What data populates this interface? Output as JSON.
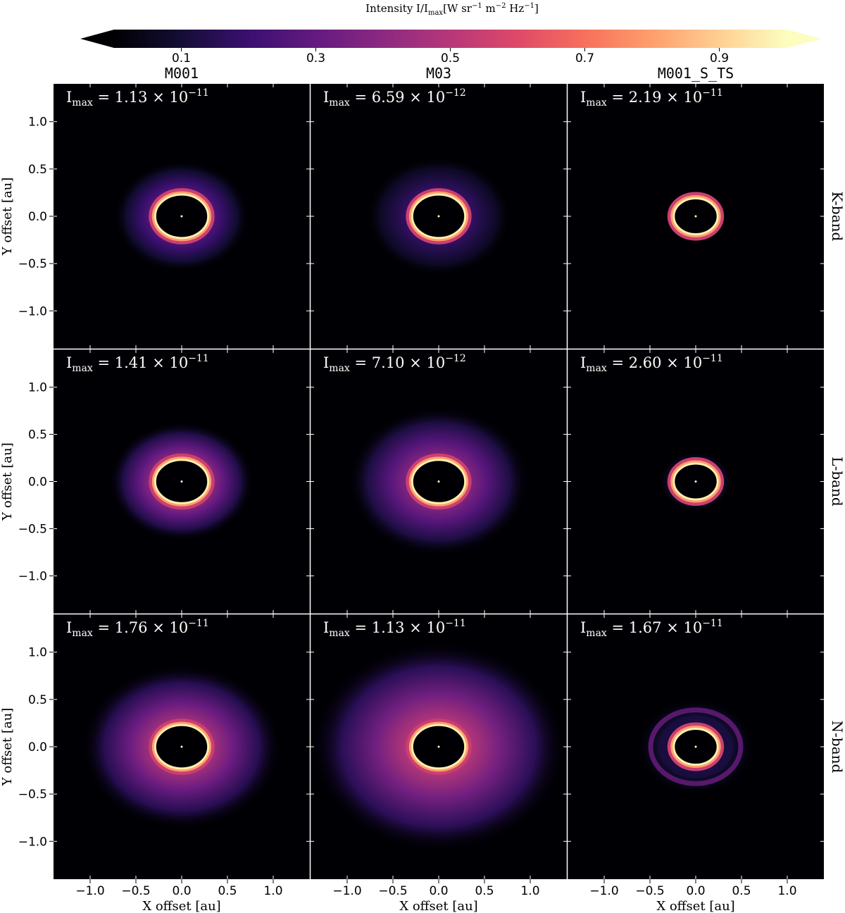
{
  "chart_data": {
    "type": "heatmap",
    "layout": "3x3 grid of intensity maps",
    "colormap": "magma",
    "colorbar": {
      "label_main": "Intensity I/I",
      "label_sub": "max",
      "label_units_open": "[W sr",
      "label_exp1": "−1",
      "label_units_mid1": " m",
      "label_exp2": "−2",
      "label_units_mid2": " Hz",
      "label_exp3": "−1",
      "label_units_close": "]",
      "range": [
        0.0,
        1.0
      ],
      "extend": "both",
      "ticks": [
        0.1,
        0.3,
        0.5,
        0.7,
        0.9
      ],
      "tick_labels": [
        "0.1",
        "0.3",
        "0.5",
        "0.7",
        "0.9"
      ]
    },
    "columns": [
      "M001",
      "M03",
      "M001_S_TS"
    ],
    "rows": [
      "K-band",
      "L-band",
      "N-band"
    ],
    "xlabel": "X offset [au]",
    "ylabel": "Y offset [au]",
    "xlim": [
      -1.4,
      1.4
    ],
    "ylim": [
      -1.4,
      1.4
    ],
    "xticks": [
      -1.0,
      -0.5,
      0.0,
      0.5,
      1.0
    ],
    "xtick_labels": [
      "−1.0",
      "−0.5",
      "0.0",
      "0.5",
      "1.0"
    ],
    "yticks": [
      1.0,
      0.5,
      0.0,
      -0.5,
      -1.0
    ],
    "ytick_labels": [
      "1.0",
      "0.5",
      "0.0",
      "−0.5",
      "−1.0"
    ],
    "panels": [
      {
        "row": "K-band",
        "column": "M001",
        "imax_prefix": "I",
        "imax_sub": "max",
        "imax_mantissa": " = 1.13 × 10",
        "imax_exp": "−11",
        "imax": 1.13e-11,
        "ring_radius_x": 0.29,
        "ring_radius_y": 0.23,
        "halo_extent": 0.45,
        "halo_level": 0.25,
        "outer_ring": 0
      },
      {
        "row": "K-band",
        "column": "M03",
        "imax_prefix": "I",
        "imax_sub": "max",
        "imax_mantissa": " = 6.59 × 10",
        "imax_exp": "−12",
        "imax": 6.59e-12,
        "ring_radius_x": 0.29,
        "ring_radius_y": 0.23,
        "halo_extent": 0.5,
        "halo_level": 0.18,
        "outer_ring": 0
      },
      {
        "row": "K-band",
        "column": "M001_S_TS",
        "imax_prefix": "I",
        "imax_sub": "max",
        "imax_mantissa": " = 2.19 × 10",
        "imax_exp": "−11",
        "imax": 2.19e-11,
        "ring_radius_x": 0.24,
        "ring_radius_y": 0.19,
        "halo_extent": 0.1,
        "halo_level": 0.05,
        "outer_ring": 0
      },
      {
        "row": "L-band",
        "column": "M001",
        "imax_prefix": "I",
        "imax_sub": "max",
        "imax_mantissa": " = 1.41 × 10",
        "imax_exp": "−11",
        "imax": 1.41e-11,
        "ring_radius_x": 0.29,
        "ring_radius_y": 0.23,
        "halo_extent": 0.5,
        "halo_level": 0.38,
        "outer_ring": 0
      },
      {
        "row": "L-band",
        "column": "M03",
        "imax_prefix": "I",
        "imax_sub": "max",
        "imax_mantissa": " = 7.10 × 10",
        "imax_exp": "−12",
        "imax": 7.1e-12,
        "ring_radius_x": 0.29,
        "ring_radius_y": 0.23,
        "halo_extent": 0.7,
        "halo_level": 0.35,
        "outer_ring": 0
      },
      {
        "row": "L-band",
        "column": "M001_S_TS",
        "imax_prefix": "I",
        "imax_sub": "max",
        "imax_mantissa": " = 2.60 × 10",
        "imax_exp": "−11",
        "imax": 2.6e-11,
        "ring_radius_x": 0.24,
        "ring_radius_y": 0.19,
        "halo_extent": 0.15,
        "halo_level": 0.1,
        "outer_ring": 0
      },
      {
        "row": "N-band",
        "column": "M001",
        "imax_prefix": "I",
        "imax_sub": "max",
        "imax_mantissa": " = 1.76 × 10",
        "imax_exp": "−11",
        "imax": 1.76e-11,
        "ring_radius_x": 0.29,
        "ring_radius_y": 0.23,
        "halo_extent": 0.8,
        "halo_level": 0.42,
        "outer_ring": 0
      },
      {
        "row": "N-band",
        "column": "M03",
        "imax_prefix": "I",
        "imax_sub": "max",
        "imax_mantissa": " = 1.13 × 10",
        "imax_exp": "−11",
        "imax": 1.13e-11,
        "ring_radius_x": 0.29,
        "ring_radius_y": 0.23,
        "halo_extent": 1.1,
        "halo_level": 0.45,
        "outer_ring": 0
      },
      {
        "row": "N-band",
        "column": "M001_S_TS",
        "imax_prefix": "I",
        "imax_sub": "max",
        "imax_mantissa": " = 1.67 × 10",
        "imax_exp": "−11",
        "imax": 1.67e-11,
        "ring_radius_x": 0.24,
        "ring_radius_y": 0.19,
        "halo_extent": 0.4,
        "halo_level": 0.12,
        "outer_ring": 1
      }
    ]
  }
}
